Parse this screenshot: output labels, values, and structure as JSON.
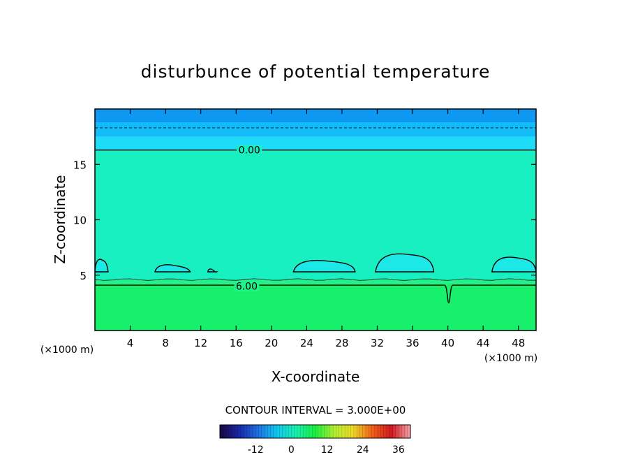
{
  "chart_data": {
    "type": "heatmap",
    "title": "disturbunce of potential temperature",
    "xlabel": "X-coordinate",
    "ylabel": "Z-coordinate",
    "x_unit_left": "(×1000 m)",
    "x_unit_right": "(×1000 m)",
    "xlim": [
      0,
      50
    ],
    "ylim": [
      0,
      20
    ],
    "x_ticks": [
      4,
      8,
      12,
      16,
      20,
      24,
      28,
      32,
      36,
      40,
      44,
      48
    ],
    "y_ticks": [
      5,
      10,
      15
    ],
    "contour_interval_text": "CONTOUR INTERVAL = 3.000E+00",
    "contour_labels": [
      {
        "text": "0.00",
        "x": 17.5,
        "y": 16.3
      },
      {
        "text": "6.00",
        "x": 17.2,
        "y": 4.0
      }
    ],
    "levels": [
      {
        "z_bottom": 0,
        "z_top": 4.2,
        "value": 8,
        "color": "#16f06a"
      },
      {
        "z_bottom": 4.2,
        "z_top": 4.6,
        "value": 6,
        "color": "#22f28a"
      },
      {
        "z_bottom": 4.6,
        "z_top": 16.3,
        "value": 3,
        "color": "#18f0c2"
      },
      {
        "z_bottom": 16.3,
        "z_top": 17.5,
        "value": -1,
        "color": "#1edcf8"
      },
      {
        "z_bottom": 17.5,
        "z_top": 18.8,
        "value": -2,
        "color": "#12bcf8"
      },
      {
        "z_bottom": 18.8,
        "z_top": 20,
        "value": -3,
        "color": "#0e98f2"
      }
    ],
    "zero_line_z": 16.3,
    "six_line_z": 4.1,
    "dashed_line_z": 18.3,
    "dip": {
      "x": 40.1,
      "z_min": 2.5
    },
    "cold_pockets": [
      {
        "x1": 0,
        "x2": 1.5,
        "z_top": 6.5
      },
      {
        "x1": 6.8,
        "x2": 10.8,
        "z_top": 6.0
      },
      {
        "x1": 12.8,
        "x2": 13.8,
        "z_top": 5.6
      },
      {
        "x1": 22.5,
        "x2": 29.5,
        "z_top": 6.4
      },
      {
        "x1": 31.8,
        "x2": 38.4,
        "z_top": 7.0
      },
      {
        "x1": 45.0,
        "x2": 50,
        "z_top": 6.7
      }
    ],
    "colorbar": {
      "range": [
        -24,
        40
      ],
      "tick_values": [
        -12,
        0,
        12,
        24,
        36
      ],
      "tick_labels": [
        "-12",
        "0",
        "12",
        "24",
        "36"
      ],
      "stops": [
        "#1a0640",
        "#1828a8",
        "#1e70e0",
        "#10c8f0",
        "#18f0b0",
        "#18f040",
        "#b0f030",
        "#f0d828",
        "#f06018",
        "#d01820",
        "#f4a4a8"
      ]
    }
  }
}
